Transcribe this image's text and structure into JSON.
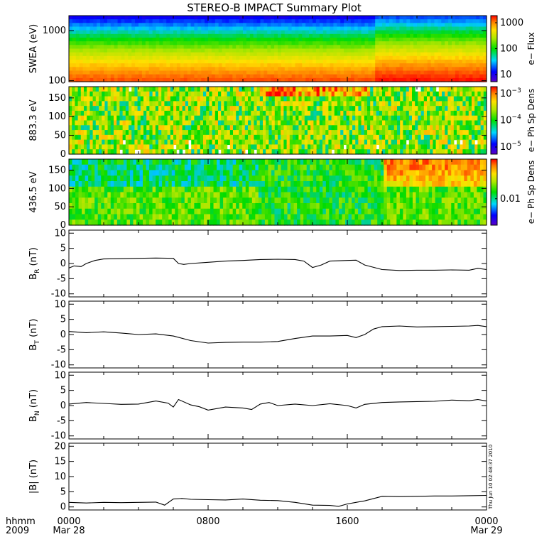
{
  "title": "STEREO-B IMPACT Summary Plot",
  "timestamp": "Thu Jun 10 02:48:37 2010",
  "time_axis": {
    "label_top": "hhmm",
    "label_bottom": "2009",
    "ticks": [
      {
        "t": 0,
        "top": "0000",
        "bottom": "Mar 28"
      },
      {
        "t": 8,
        "top": "0800",
        "bottom": ""
      },
      {
        "t": 16,
        "top": "1600",
        "bottom": ""
      },
      {
        "t": 24,
        "top": "0000",
        "bottom": "Mar 29"
      }
    ],
    "range_hours": [
      0,
      24
    ]
  },
  "colors": {
    "line": "#000000",
    "frame": "#000000"
  },
  "chart_data": [
    {
      "type": "heatmap",
      "ylabel": "SWEA (eV)",
      "ylog": true,
      "ylim": [
        95,
        2000
      ],
      "yticks": [
        {
          "v": 1000,
          "label": "1000"
        },
        {
          "v": 100,
          "label": "100"
        }
      ],
      "colorbar": {
        "label": "e− Flux",
        "log": true,
        "ticks": [
          {
            "label": "1000"
          },
          {
            "label": "100"
          },
          {
            "label": "10"
          }
        ]
      }
    },
    {
      "type": "heatmap",
      "ylabel": "883.3 eV",
      "ylim": [
        0,
        180
      ],
      "yticks": [
        {
          "v": 0,
          "label": "0"
        },
        {
          "v": 50,
          "label": "50"
        },
        {
          "v": 100,
          "label": "100"
        },
        {
          "v": 150,
          "label": "150"
        }
      ],
      "colorbar": {
        "label": "e− Ph Sp Dens",
        "ticks": [
          {
            "base": "10",
            "exp": "−3"
          },
          {
            "base": "10",
            "exp": "−4"
          },
          {
            "base": "10",
            "exp": "−5"
          }
        ]
      }
    },
    {
      "type": "heatmap",
      "ylabel": "436.5 eV",
      "ylim": [
        0,
        180
      ],
      "yticks": [
        {
          "v": 0,
          "label": "0"
        },
        {
          "v": 50,
          "label": "50"
        },
        {
          "v": 100,
          "label": "100"
        },
        {
          "v": 150,
          "label": "150"
        }
      ],
      "colorbar": {
        "label": "e− Ph Sp Dens",
        "ticks": [
          {
            "label": "0.01"
          }
        ]
      }
    },
    {
      "type": "line",
      "ylabel_main": "B",
      "ylabel_sub": "R",
      "ylabel_unit": " (nT)",
      "ylim": [
        -11,
        11
      ],
      "yticks": [
        -10,
        -5,
        0,
        5,
        10
      ],
      "x": [
        0,
        0.3,
        0.7,
        1,
        1.5,
        2,
        3,
        4,
        5,
        6,
        6.3,
        6.6,
        7,
        8,
        9,
        10,
        11,
        12,
        13,
        13.5,
        14,
        14.5,
        15,
        16,
        16.5,
        17,
        18,
        19,
        20,
        21,
        22,
        23,
        23.5,
        24
      ],
      "y": [
        -1.5,
        -0.8,
        -1,
        0,
        1,
        1.5,
        1.6,
        1.7,
        1.8,
        1.7,
        0,
        -0.3,
        0,
        0.4,
        0.8,
        1,
        1.3,
        1.4,
        1.3,
        0.8,
        -1.3,
        -0.5,
        0.8,
        1,
        1.1,
        -0.5,
        -2,
        -2.3,
        -2.2,
        -2.2,
        -2.1,
        -2.2,
        -1.6,
        -2
      ]
    },
    {
      "type": "line",
      "ylabel_main": "B",
      "ylabel_sub": "T",
      "ylabel_unit": " (nT)",
      "ylim": [
        -11,
        11
      ],
      "yticks": [
        -10,
        -5,
        0,
        5,
        10
      ],
      "x": [
        0,
        1,
        2,
        3,
        4,
        5,
        6,
        7,
        8,
        9,
        10,
        11,
        12,
        13,
        14,
        15,
        16,
        16.5,
        17,
        17.5,
        18,
        19,
        20,
        21,
        22,
        23,
        23.5,
        24
      ],
      "y": [
        1,
        0.6,
        0.9,
        0.5,
        0,
        0.2,
        -0.5,
        -2,
        -2.8,
        -2.6,
        -2.5,
        -2.5,
        -2.3,
        -1.3,
        -0.5,
        -0.5,
        -0.3,
        -1,
        0,
        1.8,
        2.6,
        2.8,
        2.5,
        2.6,
        2.7,
        2.8,
        3,
        2.6
      ]
    },
    {
      "type": "line",
      "ylabel_main": "B",
      "ylabel_sub": "N",
      "ylabel_unit": " (nT)",
      "ylim": [
        -11,
        11
      ],
      "yticks": [
        -10,
        -5,
        0,
        5,
        10
      ],
      "x": [
        0,
        1,
        2,
        3,
        4,
        5,
        5.7,
        6,
        6.3,
        7,
        7.5,
        8,
        9,
        10,
        10.5,
        11,
        11.5,
        12,
        13,
        14,
        15,
        16,
        16.5,
        17,
        18,
        19,
        20,
        21,
        22,
        23,
        23.5,
        24
      ],
      "y": [
        0.5,
        1,
        0.7,
        0.4,
        0.5,
        1.5,
        0.8,
        -0.5,
        2,
        0.2,
        -0.4,
        -1.5,
        -0.5,
        -0.8,
        -1.3,
        0.5,
        1,
        0,
        0.5,
        0,
        0.6,
        0,
        -0.8,
        0.4,
        1,
        1.2,
        1.3,
        1.4,
        1.8,
        1.6,
        2,
        1.5
      ]
    },
    {
      "type": "line",
      "ylabel_main": "|B| (nT)",
      "ylim": [
        -1,
        21
      ],
      "yticks": [
        0,
        5,
        10,
        15,
        20
      ],
      "x": [
        0,
        1,
        2,
        3,
        4,
        5,
        5.5,
        6,
        6.5,
        7,
        8,
        9,
        10,
        11,
        12,
        13,
        14,
        15,
        15.5,
        16,
        16.5,
        17,
        18,
        19,
        20,
        21,
        22,
        23,
        24
      ],
      "y": [
        1.5,
        1.3,
        1.5,
        1.4,
        1.5,
        1.6,
        0.6,
        2.6,
        2.8,
        2.5,
        2.4,
        2.3,
        2.6,
        2.2,
        2.1,
        1.5,
        0.6,
        0.5,
        0.2,
        1,
        1.5,
        2,
        3.5,
        3.4,
        3.5,
        3.6,
        3.6,
        3.7,
        3.8
      ]
    }
  ]
}
